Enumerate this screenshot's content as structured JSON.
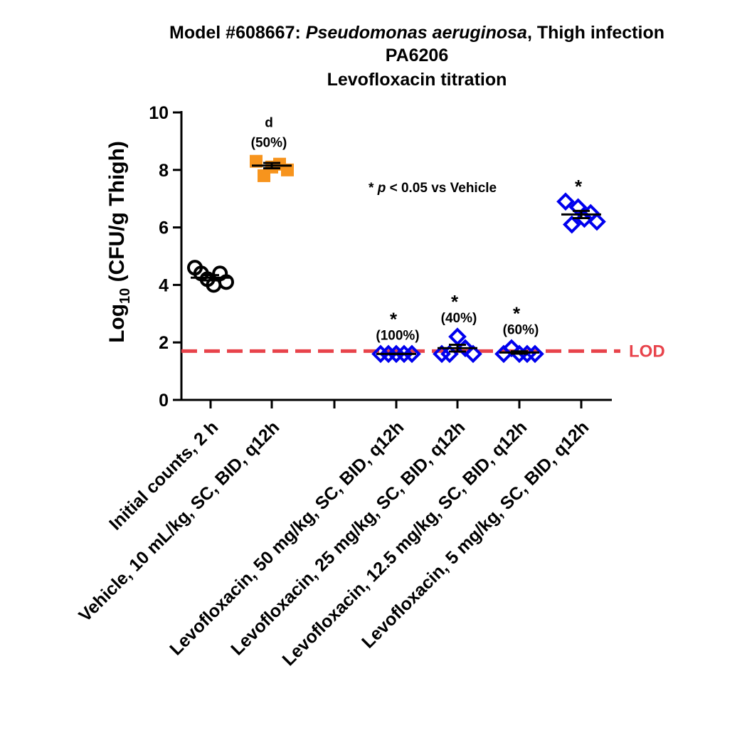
{
  "chart_data": {
    "type": "scatter",
    "title_lines": [
      {
        "parts": [
          {
            "text": "Model #608667: ",
            "italic": false
          },
          {
            "text": "Pseudomonas aeruginosa",
            "italic": true
          },
          {
            "text": ", Thigh infection",
            "italic": false
          }
        ]
      },
      {
        "parts": [
          {
            "text": "PA6206",
            "italic": false
          }
        ]
      },
      {
        "parts": [
          {
            "text": "Levofloxacin titration",
            "italic": false
          }
        ]
      }
    ],
    "ylabel": {
      "prefix": "Log",
      "subscript": "10",
      "suffix": " (CFU/g Thigh)"
    },
    "ylim": [
      0,
      10
    ],
    "yticks": [
      0,
      2,
      4,
      6,
      8,
      10
    ],
    "xlabel": "",
    "categories": [
      "Initial counts, 2 h",
      "Vehicle, 10 mL/kg, SC, BID, q12h",
      "",
      "Levofloxacin, 50 mg/kg, SC, BID, q12h",
      "Levofloxacin, 25 mg/kg, SC, BID, q12h",
      "Levofloxacin, 12.5 mg/kg, SC, BID, q12h",
      "Levofloxacin, 5 mg/kg, SC, BID, q12h"
    ],
    "series": [
      {
        "category_index": 0,
        "marker": "circle",
        "color": "#000000",
        "values": [
          4.6,
          4.4,
          4.2,
          4.0,
          4.4,
          4.1
        ],
        "mean": 4.25
      },
      {
        "category_index": 1,
        "marker": "square",
        "color": "#F7941D",
        "values": [
          8.3,
          7.8,
          8.1,
          8.2,
          8.0
        ],
        "mean": 8.15
      },
      {
        "category_index": 3,
        "marker": "diamond",
        "color": "#0000EE",
        "values": [
          1.6,
          1.6,
          1.6,
          1.6,
          1.6
        ],
        "mean": 1.6
      },
      {
        "category_index": 4,
        "marker": "diamond",
        "color": "#0000EE",
        "values": [
          1.6,
          1.6,
          2.2,
          1.8,
          1.6
        ],
        "mean": 1.8
      },
      {
        "category_index": 5,
        "marker": "diamond",
        "color": "#0000EE",
        "values": [
          1.6,
          1.8,
          1.6,
          1.6,
          1.6
        ],
        "mean": 1.65
      },
      {
        "category_index": 6,
        "marker": "diamond",
        "color": "#0000EE",
        "values": [
          6.9,
          6.1,
          6.7,
          6.3,
          6.5,
          6.2
        ],
        "mean": 6.45
      }
    ],
    "reference_line": {
      "y": 1.7,
      "label": "LOD",
      "color": "#E8434B",
      "style": "dashed"
    },
    "annotations": [
      {
        "category_index": 1,
        "star": "d",
        "pct": "(50%)"
      },
      {
        "category_index": 3,
        "star": "*",
        "pct": "(100%)"
      },
      {
        "category_index": 4,
        "star": "*",
        "pct": "(40%)"
      },
      {
        "category_index": 5,
        "star": "*",
        "pct": "(60%)"
      },
      {
        "category_index": 6,
        "star": "*",
        "pct": ""
      }
    ],
    "note": {
      "star": "* ",
      "p": "p",
      "rest": " < 0.05 vs Vehicle"
    },
    "grid": false,
    "legend": "none"
  }
}
